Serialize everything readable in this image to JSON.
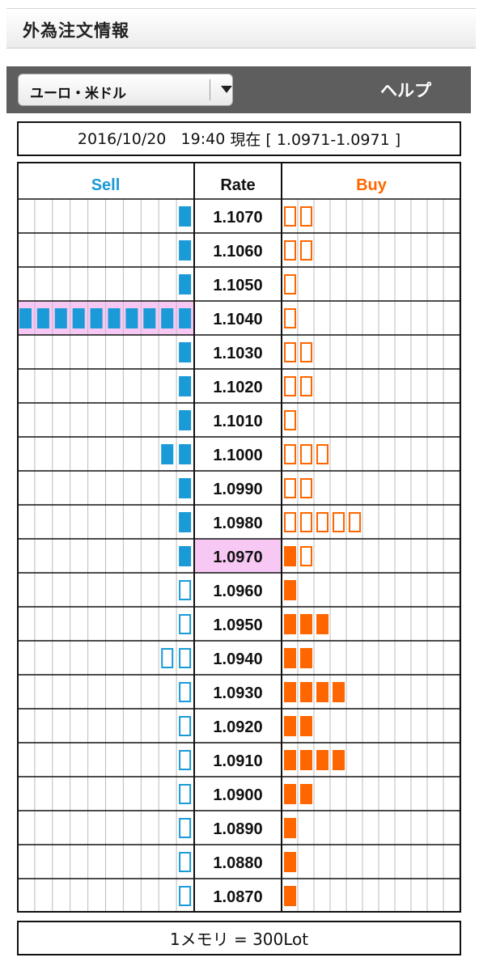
{
  "header": {
    "title": "外為注文情報"
  },
  "toolbar": {
    "pair": "ユーロ・米ドル",
    "help": "ヘルプ"
  },
  "status": {
    "date": "2016/10/20",
    "time": "19:40",
    "suffix": "現在 [ 1.0971-1.0971 ]"
  },
  "board": {
    "col_sell": "Sell",
    "col_rate": "Rate",
    "col_buy": "Buy",
    "colors": {
      "sell": "#1a9ad6",
      "buy": "#ff6600",
      "highlight": "#f8c8f5",
      "grid": "#bbbbbb",
      "border": "#111111"
    },
    "current_rate": "1.0970",
    "rows": [
      {
        "rate": "1.1070",
        "sell": 1,
        "sell_filled": true,
        "buy": 2,
        "buy_filled": false
      },
      {
        "rate": "1.1060",
        "sell": 1,
        "sell_filled": true,
        "buy": 2,
        "buy_filled": false
      },
      {
        "rate": "1.1050",
        "sell": 1,
        "sell_filled": true,
        "buy": 1,
        "buy_filled": false
      },
      {
        "rate": "1.1040",
        "sell": 10,
        "sell_filled": true,
        "buy": 1,
        "buy_filled": false,
        "sell_highlight": true
      },
      {
        "rate": "1.1030",
        "sell": 1,
        "sell_filled": true,
        "buy": 2,
        "buy_filled": false
      },
      {
        "rate": "1.1020",
        "sell": 1,
        "sell_filled": true,
        "buy": 2,
        "buy_filled": false
      },
      {
        "rate": "1.1010",
        "sell": 1,
        "sell_filled": true,
        "buy": 1,
        "buy_filled": false
      },
      {
        "rate": "1.1000",
        "sell": 2,
        "sell_filled": true,
        "buy": 3,
        "buy_filled": false
      },
      {
        "rate": "1.0990",
        "sell": 1,
        "sell_filled": true,
        "buy": 2,
        "buy_filled": false
      },
      {
        "rate": "1.0980",
        "sell": 1,
        "sell_filled": true,
        "buy": 5,
        "buy_filled": false
      },
      {
        "rate": "1.0970",
        "sell": 1,
        "sell_filled": true,
        "buy": 1,
        "buy_filled": true,
        "buy_extra_outline": 1,
        "rate_highlight": true
      },
      {
        "rate": "1.0960",
        "sell": 1,
        "sell_filled": false,
        "buy": 1,
        "buy_filled": true
      },
      {
        "rate": "1.0950",
        "sell": 1,
        "sell_filled": false,
        "buy": 3,
        "buy_filled": true
      },
      {
        "rate": "1.0940",
        "sell": 2,
        "sell_filled": false,
        "buy": 2,
        "buy_filled": true
      },
      {
        "rate": "1.0930",
        "sell": 1,
        "sell_filled": false,
        "buy": 4,
        "buy_filled": true
      },
      {
        "rate": "1.0920",
        "sell": 1,
        "sell_filled": false,
        "buy": 2,
        "buy_filled": true
      },
      {
        "rate": "1.0910",
        "sell": 1,
        "sell_filled": false,
        "buy": 4,
        "buy_filled": true
      },
      {
        "rate": "1.0900",
        "sell": 1,
        "sell_filled": false,
        "buy": 2,
        "buy_filled": true
      },
      {
        "rate": "1.0890",
        "sell": 1,
        "sell_filled": false,
        "buy": 1,
        "buy_filled": true
      },
      {
        "rate": "1.0880",
        "sell": 1,
        "sell_filled": false,
        "buy": 1,
        "buy_filled": true
      },
      {
        "rate": "1.0870",
        "sell": 1,
        "sell_filled": false,
        "buy": 1,
        "buy_filled": true
      }
    ]
  },
  "footer": {
    "note": "1メモリ = 300Lot"
  }
}
